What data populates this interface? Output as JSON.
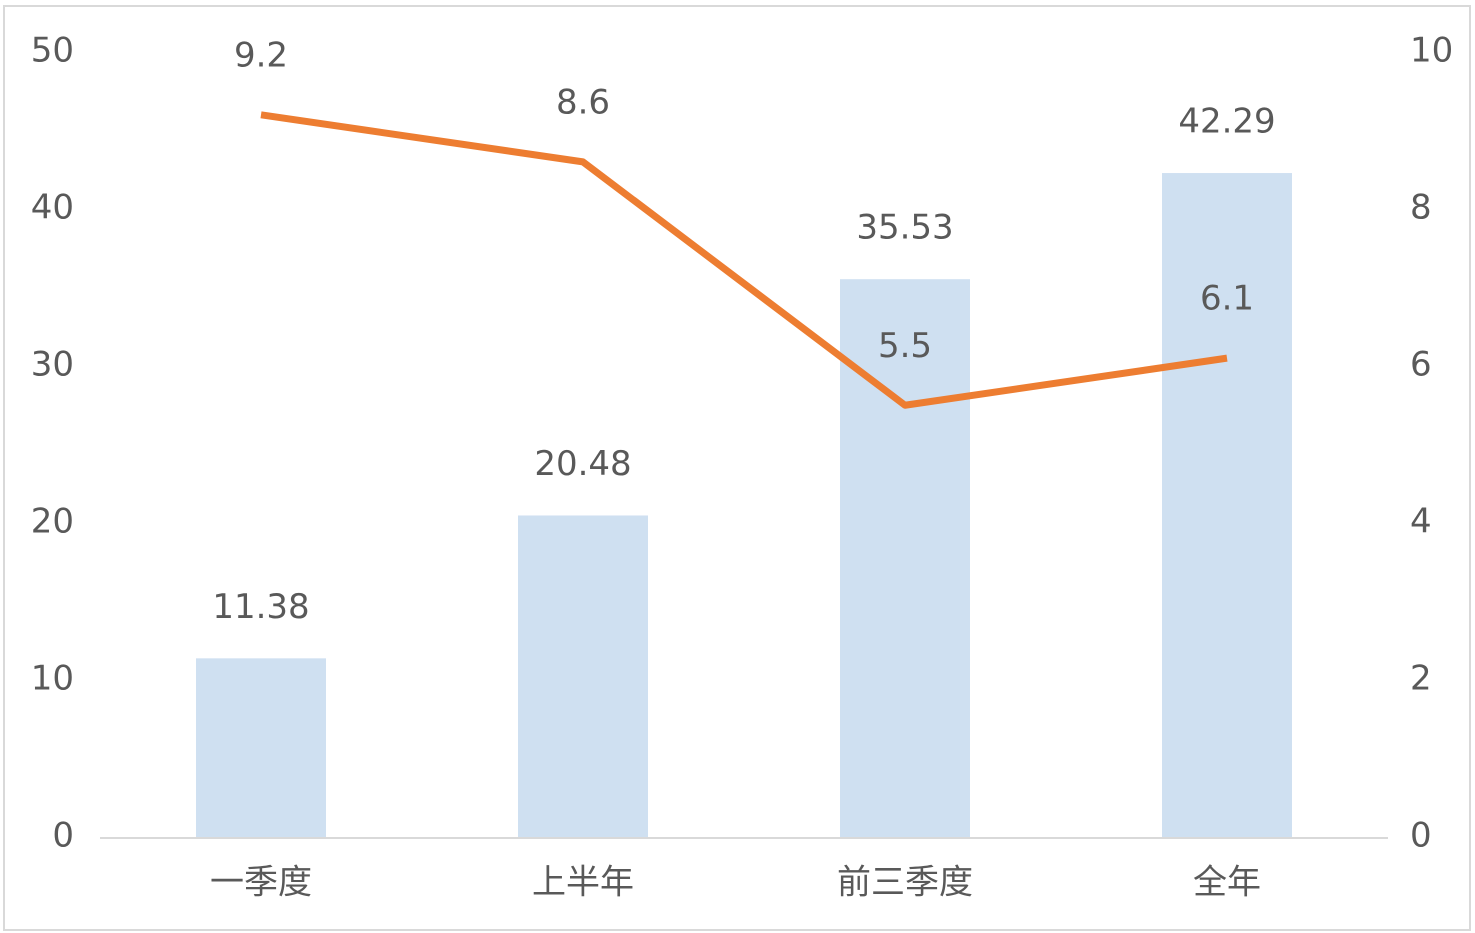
{
  "chart_data": {
    "type": "bar",
    "categories": [
      "一季度",
      "上半年",
      "前三季度",
      "全年"
    ],
    "series": [
      {
        "type": "bar",
        "color": "#cfe0f1",
        "values": [
          11.38,
          20.48,
          35.53,
          42.29
        ]
      },
      {
        "type": "line",
        "color": "#ed7d31",
        "axis": "y2",
        "values": [
          9.2,
          8.6,
          5.5,
          6.1
        ]
      }
    ],
    "ylim": [
      0,
      50
    ],
    "yticks": [
      0,
      10,
      20,
      30,
      40,
      50
    ],
    "y2lim": [
      0,
      10
    ],
    "y2ticks": [
      0,
      2,
      4,
      6,
      8,
      10
    ],
    "grid": false
  }
}
